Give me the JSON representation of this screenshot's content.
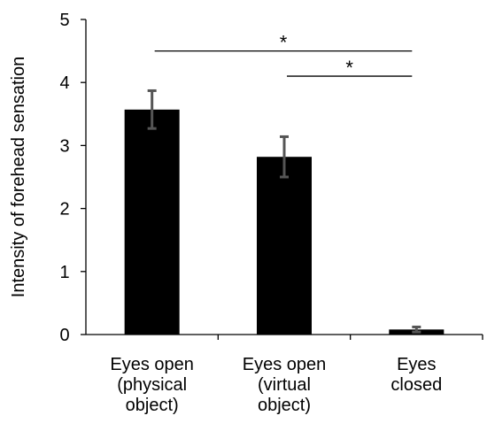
{
  "chart_data": {
    "type": "bar",
    "title": "",
    "xlabel": "",
    "ylabel": "Intensity of forehead sensation",
    "ylim": [
      0,
      5
    ],
    "yticks": [
      0,
      1,
      2,
      3,
      4,
      5
    ],
    "grid": false,
    "categories": [
      [
        "Eyes open",
        "(physical",
        "object)"
      ],
      [
        "Eyes open",
        "(virtual",
        "object)"
      ],
      [
        "Eyes",
        "closed"
      ]
    ],
    "values": [
      3.57,
      2.82,
      0.08
    ],
    "errors": [
      0.3,
      0.32,
      0.04
    ],
    "bar_color": "#000000",
    "error_color": "#555555",
    "significance": [
      {
        "from": 0,
        "to": 2,
        "label": "*",
        "y": 4.5
      },
      {
        "from": 1,
        "to": 2,
        "label": "*",
        "y": 4.1
      }
    ]
  }
}
